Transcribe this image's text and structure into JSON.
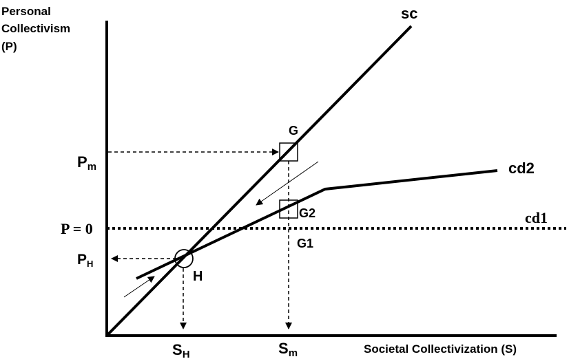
{
  "y_axis_title": [
    "Personal",
    "Collectivism",
    "(P)"
  ],
  "x_axis_title": "Societal Collectivization (S)",
  "curves": {
    "sc": "sc",
    "cd2": "cd2",
    "cd1": "cd1"
  },
  "points": {
    "G": "G",
    "G2": "G2",
    "G1": "G1",
    "H": "H"
  },
  "y_labels": {
    "pm_main": "P",
    "pm_sub": "m",
    "p_zero": "P = 0",
    "ph_main": "P",
    "ph_sub": "H"
  },
  "x_labels": {
    "sh_main": "S",
    "sh_sub": "H",
    "sm_main": "S",
    "sm_sub": "m"
  },
  "colors": {
    "ink": "#000000",
    "background": "#ffffff"
  }
}
